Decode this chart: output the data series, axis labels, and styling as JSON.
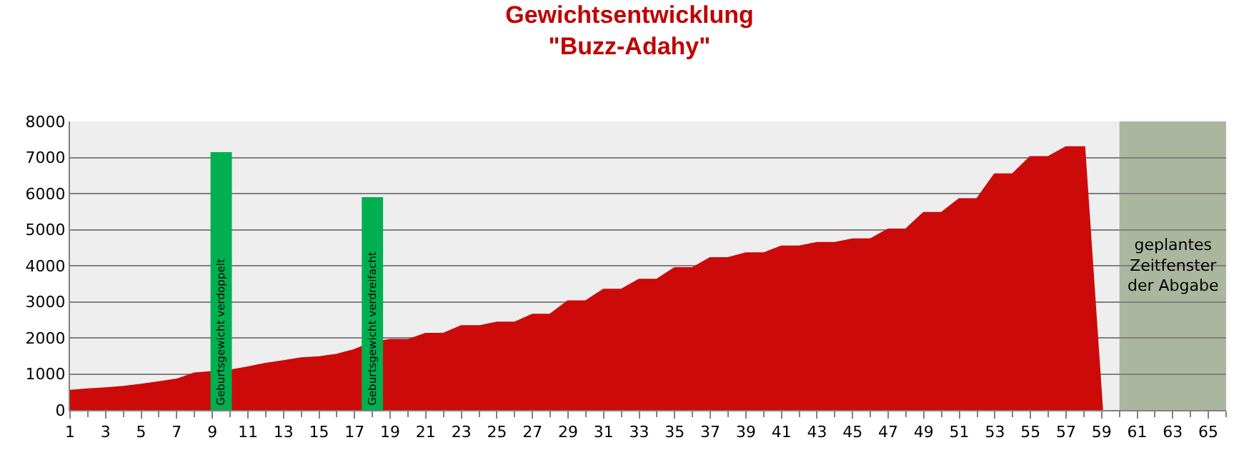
{
  "chart_data": {
    "type": "area",
    "title": "Gewichtsentwicklung\n\"Buzz-Adahy\"",
    "xlim": [
      1,
      66
    ],
    "xticks": [
      1,
      3,
      5,
      7,
      9,
      11,
      13,
      15,
      17,
      19,
      21,
      23,
      25,
      27,
      29,
      31,
      33,
      35,
      37,
      39,
      41,
      43,
      45,
      47,
      49,
      51,
      53,
      55,
      57,
      59,
      61,
      63,
      65
    ],
    "ylim": [
      0,
      8000
    ],
    "yticks": [
      0,
      1000,
      2000,
      3000,
      4000,
      5000,
      6000,
      7000,
      8000
    ],
    "grid": "y",
    "legend": false,
    "series": [
      {
        "color": "#cc0a0a",
        "x": [
          1,
          2,
          3,
          4,
          5,
          6,
          7,
          8,
          9,
          10,
          11,
          12,
          13,
          14,
          15,
          16,
          17,
          18,
          19,
          20,
          21,
          22,
          23,
          24,
          25,
          26,
          27,
          28,
          29,
          30,
          31,
          32,
          33,
          34,
          35,
          36,
          37,
          38,
          39,
          40,
          41,
          42,
          43,
          44,
          45,
          46,
          47,
          48,
          49,
          50,
          51,
          52,
          53,
          54,
          55,
          56,
          57,
          58,
          59
        ],
        "values": [
          520,
          560,
          590,
          630,
          690,
          760,
          830,
          1000,
          1040,
          1080,
          1170,
          1270,
          1340,
          1420,
          1450,
          1520,
          1650,
          1860,
          1930,
          1930,
          2100,
          2100,
          2310,
          2310,
          2410,
          2410,
          2630,
          2630,
          3000,
          3000,
          3320,
          3320,
          3600,
          3600,
          3920,
          3920,
          4200,
          4200,
          4330,
          4330,
          4520,
          4520,
          4620,
          4620,
          4720,
          4720,
          4990,
          4990,
          5450,
          5450,
          5830,
          5830,
          6520,
          6520,
          7000,
          7000,
          7270,
          7270,
          0
        ]
      },
      {
        "type": "bar",
        "color": "#00b050",
        "x": [
          9.5,
          18
        ],
        "values": [
          7150,
          5900
        ],
        "value_labels": [
          "Geburtsgewicht verdoppelt",
          "Geburtsgewicht verdreifacht"
        ]
      }
    ],
    "bands": [
      {
        "axis": "x",
        "from": 60,
        "to": 66,
        "label": "geplantes\nZeitfenster\nder Abgabe",
        "color": "#9aa88a"
      }
    ]
  }
}
